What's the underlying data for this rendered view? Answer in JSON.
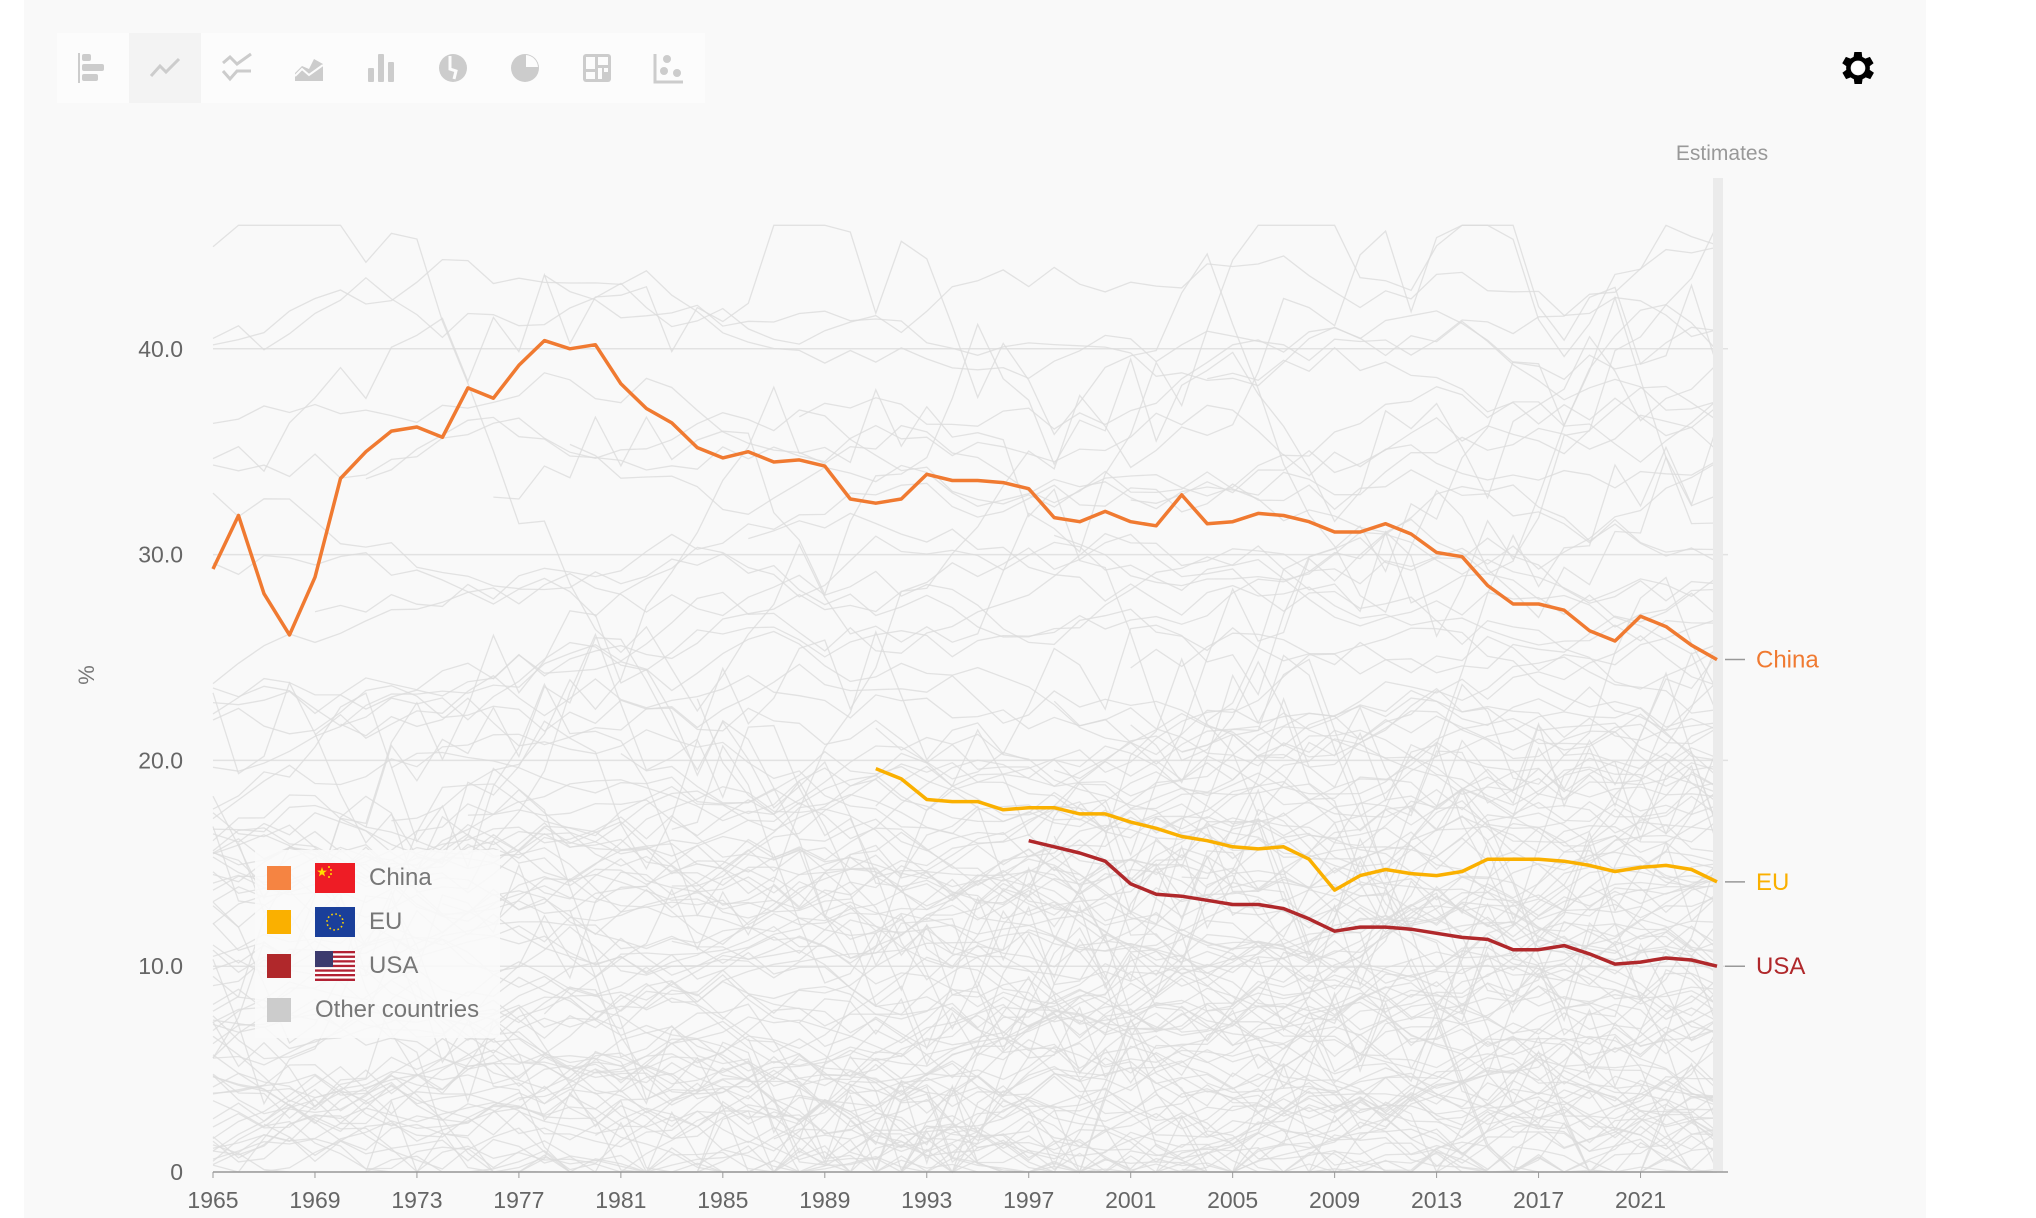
{
  "toolbar": {
    "buttons": [
      "horizontal-bar-chart",
      "line-chart",
      "slope-chart",
      "stacked-area-chart",
      "bar-chart",
      "world-map",
      "pie-chart",
      "marimekko-chart",
      "scatter-plot"
    ],
    "active": "line-chart"
  },
  "settings_icon": "gear-icon",
  "chart_data": {
    "type": "line",
    "title": "",
    "ylabel": "%",
    "xlabel": "",
    "xlim": [
      1965,
      2024
    ],
    "ylim": [
      0,
      45
    ],
    "yticks": [
      0,
      10,
      20,
      30,
      40
    ],
    "ytick_labels": [
      "0",
      "10.0",
      "20.0",
      "30.0",
      "40.0"
    ],
    "xticks": [
      1965,
      1969,
      1973,
      1977,
      1981,
      1985,
      1989,
      1993,
      1997,
      2001,
      2005,
      2009,
      2013,
      2017,
      2021
    ],
    "grid": "horizontal",
    "estimates_label": "Estimates",
    "estimates_from": 2024,
    "legend_placement": "bottom-left",
    "series": [
      {
        "name": "China",
        "color": "#f07a31",
        "start": 1965,
        "values": [
          29.3,
          31.9,
          28.1,
          26.1,
          28.9,
          33.7,
          35.0,
          36.0,
          36.2,
          35.7,
          38.1,
          37.6,
          39.2,
          40.4,
          40.0,
          40.2,
          38.3,
          37.1,
          36.4,
          35.2,
          34.7,
          35.0,
          34.5,
          34.6,
          34.3,
          32.7,
          32.5,
          32.7,
          33.9,
          33.6,
          33.6,
          33.5,
          33.2,
          31.8,
          31.6,
          32.1,
          31.6,
          31.4,
          32.9,
          31.5,
          31.6,
          32.0,
          31.9,
          31.6,
          31.1,
          31.1,
          31.5,
          31.0,
          30.1,
          29.9,
          28.5,
          27.6,
          27.6,
          27.3,
          26.3,
          25.8,
          27.0,
          26.5,
          25.6,
          24.9
        ]
      },
      {
        "name": "EU",
        "color": "#fab000",
        "start": 1991,
        "values": [
          19.6,
          19.1,
          18.1,
          18.0,
          18.0,
          17.6,
          17.7,
          17.7,
          17.4,
          17.4,
          17.0,
          16.7,
          16.3,
          16.1,
          15.8,
          15.7,
          15.8,
          15.2,
          13.7,
          14.4,
          14.7,
          14.5,
          14.4,
          14.6,
          15.2,
          15.2,
          15.2,
          15.1,
          14.9,
          14.6,
          14.8,
          14.9,
          14.7,
          14.1
        ]
      },
      {
        "name": "USA",
        "color": "#b0282b",
        "start": 1997,
        "values": [
          16.1,
          15.8,
          15.5,
          15.1,
          14.0,
          13.5,
          13.4,
          13.2,
          13.0,
          13.0,
          12.8,
          12.3,
          11.7,
          11.9,
          11.9,
          11.8,
          11.6,
          11.4,
          11.3,
          10.8,
          10.8,
          11.0,
          10.6,
          10.1,
          10.2,
          10.4,
          10.3,
          10.0
        ]
      }
    ],
    "other_series": {
      "name": "Other countries",
      "color": "#cccccc"
    }
  }
}
